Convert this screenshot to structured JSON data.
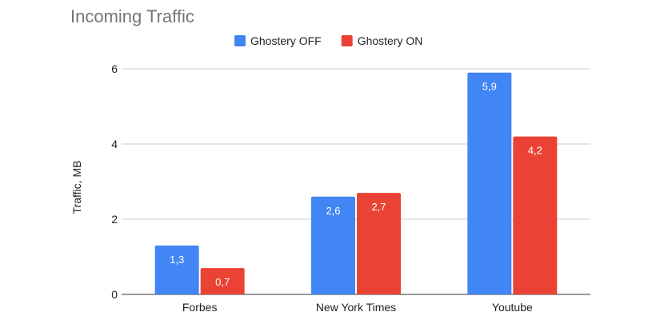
{
  "chart_data": {
    "type": "bar",
    "title": "Incoming Traffic",
    "xlabel": "",
    "ylabel": "Traffic, MB",
    "categories": [
      "Forbes",
      "New York Times",
      "Youtube"
    ],
    "series": [
      {
        "name": "Ghostery OFF",
        "color": "#4285f4",
        "values": [
          1.3,
          2.6,
          5.9
        ],
        "labels": [
          "1,3",
          "2,6",
          "5,9"
        ]
      },
      {
        "name": "Ghostery ON",
        "color": "#ea4335",
        "values": [
          0.7,
          2.7,
          4.2
        ],
        "labels": [
          "0,7",
          "2,7",
          "4,2"
        ]
      }
    ],
    "ylim": [
      0,
      6
    ],
    "yticks": [
      0,
      2,
      4,
      6
    ],
    "ytick_labels": [
      "0",
      "2",
      "4",
      "6"
    ],
    "grid": true,
    "legend_position": "top-center"
  }
}
